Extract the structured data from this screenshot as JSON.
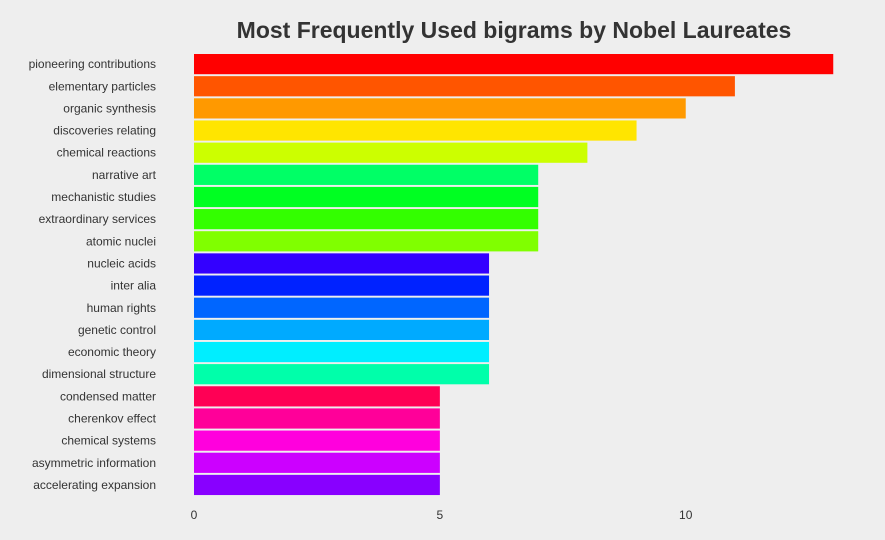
{
  "chart_data": {
    "type": "bar",
    "orientation": "horizontal",
    "title": "Most Frequently Used bigrams by Nobel Laureates",
    "xlabel": "",
    "ylabel": "",
    "xlim": [
      0,
      13.3
    ],
    "xticks": [
      0,
      5,
      10
    ],
    "grid": false,
    "legend": "none",
    "categories": [
      "pioneering contributions",
      "elementary particles",
      "organic synthesis",
      "discoveries relating",
      "chemical reactions",
      "narrative art",
      "mechanistic studies",
      "extraordinary services",
      "atomic nuclei",
      "nucleic acids",
      "inter alia",
      "human rights",
      "genetic control",
      "economic theory",
      "dimensional structure",
      "condensed matter",
      "cherenkov effect",
      "chemical systems",
      "asymmetric information",
      "accelerating expansion"
    ],
    "values": [
      13,
      11,
      10,
      9,
      8,
      7,
      7,
      7,
      7,
      6,
      6,
      6,
      6,
      6,
      6,
      5,
      5,
      5,
      5,
      5
    ],
    "colors": [
      "#FF0000",
      "#FF5500",
      "#FF9900",
      "#FFE500",
      "#CCFF00",
      "#00FF66",
      "#00FF22",
      "#33FF00",
      "#80FF00",
      "#3300FF",
      "#0022FF",
      "#0066FF",
      "#00AAFF",
      "#00EEFF",
      "#00FFAA",
      "#FF0055",
      "#FF0099",
      "#FF00DD",
      "#CC00FF",
      "#8800FF"
    ]
  }
}
